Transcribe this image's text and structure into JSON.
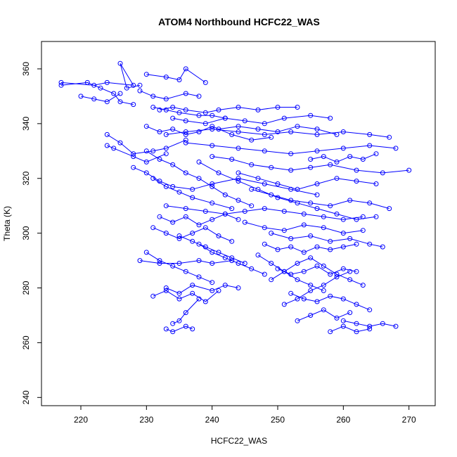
{
  "chart_data": {
    "type": "scatter",
    "title": "ATOM4 Northbound HCFC22_WAS",
    "xlabel": "HCFC22_WAS",
    "ylabel": "Theta (K)",
    "xlim": [
      214,
      274
    ],
    "ylim": [
      237,
      370
    ],
    "x_ticks": [
      220,
      230,
      240,
      250,
      260,
      270
    ],
    "y_ticks": [
      240,
      260,
      280,
      300,
      320,
      340,
      360
    ],
    "grid": false,
    "legend": "none",
    "color": "#0000ff",
    "marker": "open-circle",
    "connected": true,
    "series": [
      {
        "x": [
          217,
          222,
          224,
          228,
          226,
          227,
          229
        ],
        "y": [
          355,
          354,
          355,
          354,
          362,
          353,
          354
        ]
      },
      {
        "x": [
          217,
          221,
          223,
          225,
          226,
          228
        ],
        "y": [
          354,
          355,
          353,
          351,
          348,
          347
        ]
      },
      {
        "x": [
          220,
          222,
          224,
          226
        ],
        "y": [
          350,
          349,
          348,
          351
        ]
      },
      {
        "x": [
          230,
          233,
          235,
          236,
          239
        ],
        "y": [
          358,
          357,
          356,
          360,
          355
        ]
      },
      {
        "x": [
          229,
          231,
          233,
          236,
          238
        ],
        "y": [
          352,
          350,
          349,
          351,
          350
        ]
      },
      {
        "x": [
          231,
          233,
          235,
          238,
          240,
          242
        ],
        "y": [
          346,
          345,
          344,
          343,
          343,
          342
        ]
      },
      {
        "x": [
          232,
          234,
          236,
          239,
          241,
          244,
          247,
          250,
          253
        ],
        "y": [
          345,
          346,
          345,
          344,
          345,
          346,
          345,
          346,
          346
        ]
      },
      {
        "x": [
          234,
          236,
          239,
          242,
          245,
          248,
          251,
          255,
          258
        ],
        "y": [
          342,
          341,
          340,
          342,
          341,
          340,
          342,
          343,
          342
        ]
      },
      {
        "x": [
          224,
          226,
          228,
          231,
          233,
          236
        ],
        "y": [
          336,
          333,
          329,
          330,
          331,
          334
        ]
      },
      {
        "x": [
          224,
          225,
          228,
          230,
          233
        ],
        "y": [
          332,
          331,
          328,
          326,
          329
        ]
      },
      {
        "x": [
          230,
          232,
          234,
          236,
          238,
          240,
          243,
          246,
          249
        ],
        "y": [
          339,
          337,
          338,
          336,
          337,
          339,
          336,
          334,
          335
        ]
      },
      {
        "x": [
          228,
          230,
          232,
          234,
          237,
          240,
          244,
          248,
          252,
          256
        ],
        "y": [
          324,
          322,
          319,
          317,
          316,
          318,
          320,
          318,
          316,
          314
        ]
      },
      {
        "x": [
          231,
          233,
          235,
          237,
          240,
          243
        ],
        "y": [
          320,
          317,
          315,
          313,
          311,
          309
        ]
      },
      {
        "x": [
          230,
          232,
          234,
          236,
          238,
          240,
          242,
          244,
          246
        ],
        "y": [
          330,
          327,
          325,
          322,
          320,
          317,
          314,
          312,
          310
        ]
      },
      {
        "x": [
          233,
          236,
          240,
          244,
          248,
          252,
          256,
          260,
          264,
          267
        ],
        "y": [
          336,
          337,
          338,
          337,
          336,
          337,
          336,
          337,
          336,
          335
        ]
      },
      {
        "x": [
          236,
          240,
          244,
          248,
          252,
          256,
          260,
          264,
          268
        ],
        "y": [
          333,
          332,
          331,
          330,
          329,
          330,
          331,
          332,
          331
        ]
      },
      {
        "x": [
          240,
          243,
          246,
          249,
          252,
          255,
          258,
          262,
          266,
          270
        ],
        "y": [
          328,
          327,
          325,
          324,
          323,
          324,
          325,
          323,
          322,
          323
        ]
      },
      {
        "x": [
          238,
          241,
          244,
          247,
          250,
          253,
          256,
          259,
          262,
          265
        ],
        "y": [
          326,
          322,
          319,
          316,
          313,
          311,
          309,
          307,
          305,
          306
        ]
      },
      {
        "x": [
          232,
          234,
          236,
          238,
          240,
          242,
          244
        ],
        "y": [
          306,
          304,
          306,
          303,
          305,
          307,
          305
        ]
      },
      {
        "x": [
          231,
          233,
          235,
          237,
          239,
          241,
          243
        ],
        "y": [
          302,
          300,
          298,
          300,
          302,
          299,
          297
        ]
      },
      {
        "x": [
          233,
          236,
          239,
          242,
          245,
          248,
          251,
          254,
          257,
          260,
          263
        ],
        "y": [
          310,
          309,
          308,
          307,
          308,
          309,
          308,
          307,
          306,
          305,
          306
        ]
      },
      {
        "x": [
          230,
          232,
          234,
          236,
          238,
          240
        ],
        "y": [
          293,
          290,
          288,
          286,
          284,
          282
        ]
      },
      {
        "x": [
          229,
          232,
          235,
          238,
          240,
          243
        ],
        "y": [
          290,
          289,
          289,
          290,
          289,
          290
        ]
      },
      {
        "x": [
          231,
          233,
          235,
          237,
          239,
          241
        ],
        "y": [
          277,
          279,
          276,
          278,
          275,
          279
        ]
      },
      {
        "x": [
          233,
          235,
          237,
          240,
          242,
          244
        ],
        "y": [
          280,
          278,
          281,
          279,
          281,
          280
        ]
      },
      {
        "x": [
          233,
          234,
          236,
          237
        ],
        "y": [
          265,
          264,
          266,
          265
        ]
      },
      {
        "x": [
          234,
          235,
          236,
          238
        ],
        "y": [
          267,
          268,
          271,
          276
        ]
      },
      {
        "x": [
          247,
          249,
          251,
          253,
          255,
          257
        ],
        "y": [
          292,
          289,
          286,
          283,
          281,
          279
        ]
      },
      {
        "x": [
          248,
          250,
          252,
          254,
          256,
          258,
          260,
          262
        ],
        "y": [
          296,
          294,
          295,
          293,
          295,
          294,
          295,
          296
        ]
      },
      {
        "x": [
          249,
          252,
          255,
          258,
          261,
          264,
          266
        ],
        "y": [
          300,
          298,
          299,
          297,
          298,
          296,
          295
        ]
      },
      {
        "x": [
          250,
          252,
          254,
          256,
          258,
          260,
          262
        ],
        "y": [
          287,
          285,
          286,
          288,
          285,
          287,
          286
        ]
      },
      {
        "x": [
          252,
          254,
          256,
          258,
          260,
          262,
          264
        ],
        "y": [
          278,
          276,
          275,
          277,
          276,
          274,
          272
        ]
      },
      {
        "x": [
          253,
          255,
          257,
          259,
          261
        ],
        "y": [
          268,
          270,
          272,
          269,
          271
        ]
      },
      {
        "x": [
          258,
          260,
          262,
          264
        ],
        "y": [
          264,
          266,
          264,
          265
        ]
      },
      {
        "x": [
          260,
          262,
          264,
          266,
          268
        ],
        "y": [
          268,
          267,
          266,
          267,
          266
        ]
      },
      {
        "x": [
          246,
          249,
          252,
          255,
          258,
          261,
          264,
          267
        ],
        "y": [
          316,
          314,
          312,
          311,
          310,
          312,
          311,
          309
        ]
      },
      {
        "x": [
          244,
          247,
          250,
          253,
          256,
          259,
          262,
          265
        ],
        "y": [
          322,
          320,
          318,
          316,
          318,
          320,
          319,
          318
        ]
      },
      {
        "x": [
          245,
          248,
          251,
          254,
          257,
          260,
          263
        ],
        "y": [
          304,
          302,
          301,
          303,
          302,
          300,
          301
        ]
      },
      {
        "x": [
          249,
          251,
          253,
          255,
          257,
          259,
          261,
          263
        ],
        "y": [
          283,
          286,
          289,
          291,
          288,
          285,
          283,
          281
        ]
      },
      {
        "x": [
          251,
          253,
          255,
          257,
          259,
          261
        ],
        "y": [
          274,
          276,
          279,
          281,
          284,
          286
        ]
      },
      {
        "x": [
          238,
          240,
          242,
          244,
          246,
          248
        ],
        "y": [
          296,
          293,
          291,
          289,
          287,
          285
        ]
      },
      {
        "x": [
          235,
          237,
          239,
          241,
          243,
          245
        ],
        "y": [
          299,
          297,
          295,
          293,
          291,
          289
        ]
      },
      {
        "x": [
          255,
          257,
          259,
          261,
          263,
          265
        ],
        "y": [
          327,
          328,
          326,
          328,
          327,
          329
        ]
      },
      {
        "x": [
          241,
          244,
          247,
          250,
          253,
          256,
          259
        ],
        "y": [
          338,
          339,
          338,
          337,
          339,
          338,
          336
        ]
      }
    ]
  }
}
